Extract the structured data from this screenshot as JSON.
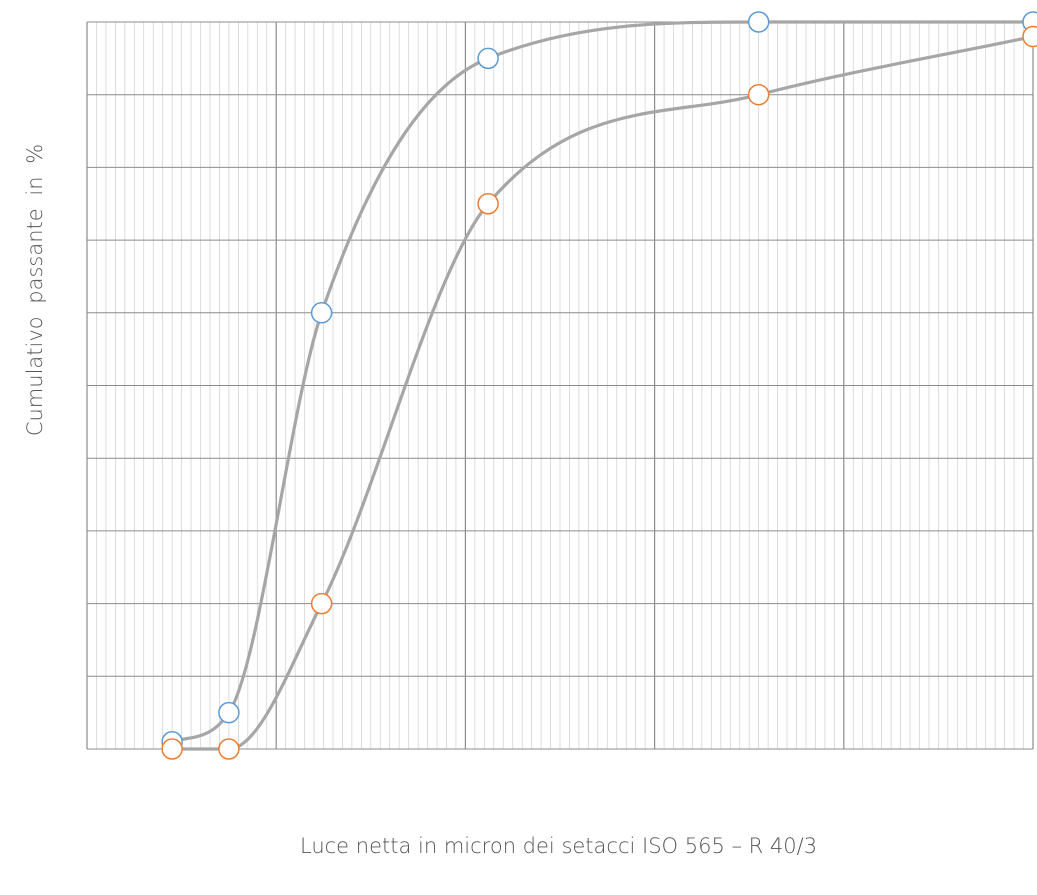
{
  "chart_data": {
    "type": "line",
    "title": "",
    "xlabel": "Luce netta in micron dei setacci  ISO 565 – R 40/3",
    "ylabel": "Cumulativo  passante  in  %",
    "xlim": [
      0,
      5
    ],
    "ylim": [
      0,
      100
    ],
    "grid": true,
    "legend": "none",
    "series": [
      {
        "color": "#5b9bd5",
        "x": [
          0.45,
          0.75,
          1.24,
          2.12,
          3.55,
          5.0
        ],
        "y": [
          1,
          5,
          60,
          95,
          100,
          100
        ]
      },
      {
        "color": "#ed7d31",
        "x": [
          0.45,
          0.75,
          1.24,
          2.12,
          3.55,
          5.0
        ],
        "y": [
          0,
          0,
          20,
          75,
          90,
          98
        ]
      }
    ],
    "line_color": "#a6a6a6"
  }
}
